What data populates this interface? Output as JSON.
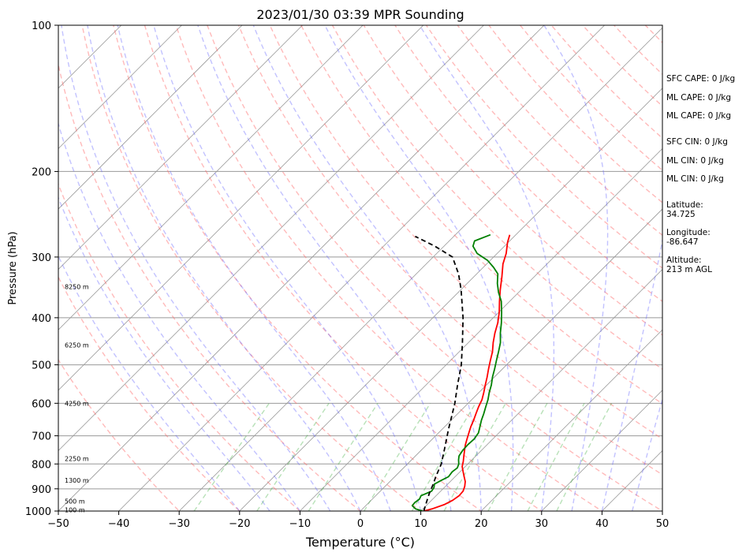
{
  "chart_data": {
    "type": "line",
    "title": "2023/01/30 03:39 MPR Sounding",
    "xlabel": "Temperature (°C)",
    "ylabel": "Pressure (hPa)",
    "xlim": [
      -50,
      50
    ],
    "ylim": [
      1000,
      100
    ],
    "y_scale": "log",
    "skew": "temperature lines skewed ~45°",
    "x_ticks": [
      "−50",
      "−40",
      "−30",
      "−20",
      "−10",
      "0",
      "10",
      "20",
      "30",
      "40",
      "50"
    ],
    "y_ticks": [
      "100",
      "200",
      "300",
      "400",
      "500",
      "600",
      "700",
      "800",
      "900",
      "1000"
    ],
    "height_labels": [
      {
        "p": 995,
        "text": "100 m"
      },
      {
        "p": 955,
        "text": "500 m"
      },
      {
        "p": 865,
        "text": "1300 m"
      },
      {
        "p": 780,
        "text": "2250 m"
      },
      {
        "p": 600,
        "text": "4250 m"
      },
      {
        "p": 455,
        "text": "6250 m"
      },
      {
        "p": 345,
        "text": "8250 m"
      }
    ],
    "series": [
      {
        "role": "temperature",
        "color": "#ff0000",
        "points": [
          [
            10.5,
            1000
          ],
          [
            11.5,
            990
          ],
          [
            12.8,
            970
          ],
          [
            13.5,
            950
          ],
          [
            13.8,
            930
          ],
          [
            13.7,
            910
          ],
          [
            13.2,
            890
          ],
          [
            12.5,
            870
          ],
          [
            11.5,
            850
          ],
          [
            10.5,
            830
          ],
          [
            9.5,
            810
          ],
          [
            8.8,
            790
          ],
          [
            8.0,
            770
          ],
          [
            7.2,
            750
          ],
          [
            6.4,
            730
          ],
          [
            5.7,
            710
          ],
          [
            5.0,
            690
          ],
          [
            4.3,
            670
          ],
          [
            3.7,
            650
          ],
          [
            3.0,
            630
          ],
          [
            2.3,
            610
          ],
          [
            1.7,
            590
          ],
          [
            0.8,
            570
          ],
          [
            -0.2,
            550
          ],
          [
            -1.2,
            530
          ],
          [
            -2.3,
            510
          ],
          [
            -3.4,
            490
          ],
          [
            -4.5,
            470
          ],
          [
            -5.9,
            450
          ],
          [
            -7.2,
            430
          ],
          [
            -8.4,
            410
          ],
          [
            -9.9,
            390
          ],
          [
            -11.7,
            370
          ],
          [
            -13.5,
            350
          ],
          [
            -15.3,
            330
          ],
          [
            -17.3,
            310
          ],
          [
            -18.5,
            295
          ],
          [
            -20.1,
            280
          ],
          [
            -21.0,
            270
          ]
        ]
      },
      {
        "role": "dewpoint",
        "color": "#008000",
        "points": [
          [
            10.3,
            1000
          ],
          [
            8.8,
            990
          ],
          [
            7.7,
            975
          ],
          [
            7.6,
            960
          ],
          [
            7.8,
            945
          ],
          [
            7.5,
            930
          ],
          [
            8.5,
            910
          ],
          [
            8.3,
            895
          ],
          [
            7.8,
            880
          ],
          [
            8.3,
            865
          ],
          [
            8.9,
            850
          ],
          [
            8.7,
            830
          ],
          [
            8.9,
            815
          ],
          [
            8.5,
            800
          ],
          [
            7.8,
            785
          ],
          [
            7.2,
            770
          ],
          [
            6.9,
            750
          ],
          [
            6.8,
            730
          ],
          [
            6.9,
            710
          ],
          [
            6.6,
            690
          ],
          [
            5.8,
            670
          ],
          [
            5.0,
            650
          ],
          [
            4.3,
            630
          ],
          [
            3.5,
            610
          ],
          [
            2.7,
            590
          ],
          [
            1.7,
            570
          ],
          [
            0.8,
            550
          ],
          [
            -0.3,
            530
          ],
          [
            -1.3,
            510
          ],
          [
            -2.4,
            490
          ],
          [
            -3.5,
            470
          ],
          [
            -4.7,
            450
          ],
          [
            -6.3,
            430
          ],
          [
            -7.8,
            410
          ],
          [
            -9.5,
            390
          ],
          [
            -11.4,
            370
          ],
          [
            -13.3,
            355
          ],
          [
            -15.0,
            340
          ],
          [
            -16.5,
            325
          ],
          [
            -18.3,
            315
          ],
          [
            -20.4,
            305
          ],
          [
            -23.3,
            295
          ],
          [
            -25.2,
            285
          ],
          [
            -25.8,
            278
          ],
          [
            -24.2,
            270
          ]
        ]
      },
      {
        "role": "parcel",
        "color": "#000000",
        "dashed": true,
        "points": [
          [
            10.5,
            1000
          ],
          [
            9.5,
            960
          ],
          [
            8.5,
            920
          ],
          [
            7.6,
            880
          ],
          [
            6.8,
            850
          ],
          [
            5.6,
            800
          ],
          [
            4.2,
            760
          ],
          [
            2.7,
            720
          ],
          [
            1.1,
            680
          ],
          [
            -0.5,
            640
          ],
          [
            -2.2,
            600
          ],
          [
            -4.8,
            550
          ],
          [
            -7.5,
            500
          ],
          [
            -11.0,
            450
          ],
          [
            -15.0,
            400
          ],
          [
            -20.0,
            350
          ],
          [
            -23.0,
            325
          ],
          [
            -26.8,
            300
          ],
          [
            -31.5,
            285
          ],
          [
            -36.4,
            272
          ]
        ]
      }
    ]
  },
  "side_panel": {
    "sfc_cape": "SFC CAPE: 0 J/kg",
    "ml_cape_1": "ML CAPE: 0 J/kg",
    "ml_cape_2": "ML CAPE: 0 J/kg",
    "sfc_cin": "SFC CIN: 0 J/kg",
    "ml_cin_1": "ML CIN: 0 J/kg",
    "ml_cin_2": "ML CIN: 0 J/kg",
    "latitude": "Latitude:\n34.725",
    "longitude": "Longitude:\n-86.647",
    "altitude": "Altitude:\n213 m AGL"
  },
  "colors": {
    "temperature": "#ff0000",
    "dewpoint": "#008000",
    "parcel": "#000000",
    "dry_adiabat": "#ff6666",
    "moist_adiabat": "#6666ff",
    "mixing_ratio": "#33aa33",
    "isotherm": "#999999"
  }
}
